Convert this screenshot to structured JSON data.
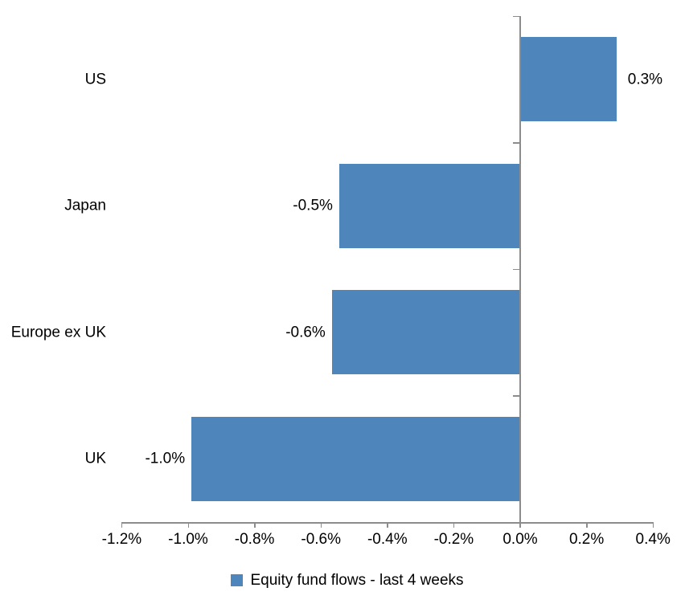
{
  "chart_data": {
    "type": "bar",
    "orientation": "horizontal",
    "title": "",
    "xlabel": "",
    "ylabel": "",
    "categories": [
      "US",
      "Japan",
      "Europe ex UK",
      "UK"
    ],
    "series": [
      {
        "name": "Equity fund flows - last 4 weeks",
        "values": [
          0.3,
          -0.5,
          -0.6,
          -1.0
        ],
        "values_precise_pct": [
          0.29,
          -0.545,
          -0.567,
          -0.99
        ],
        "value_labels": [
          "0.3%",
          "-0.5%",
          "-0.6%",
          "-1.0%"
        ]
      }
    ],
    "xlim": [
      -1.2,
      0.4
    ],
    "x_ticks": [
      -1.2,
      -1.0,
      -0.8,
      -0.6,
      -0.4,
      -0.2,
      0.0,
      0.2,
      0.4
    ],
    "x_tick_labels": [
      "-1.2%",
      "-1.0%",
      "-0.8%",
      "-0.6%",
      "-0.4%",
      "-0.2%",
      "0.0%",
      "0.2%",
      "0.4%"
    ],
    "grid": false,
    "legend_position": "bottom-center",
    "bar_color": "#4e86bc",
    "axis_color": "#8c8c8c",
    "text_color": "#000000",
    "background_color": "#ffffff"
  },
  "legend": {
    "label": "Equity fund flows - last 4 weeks"
  }
}
